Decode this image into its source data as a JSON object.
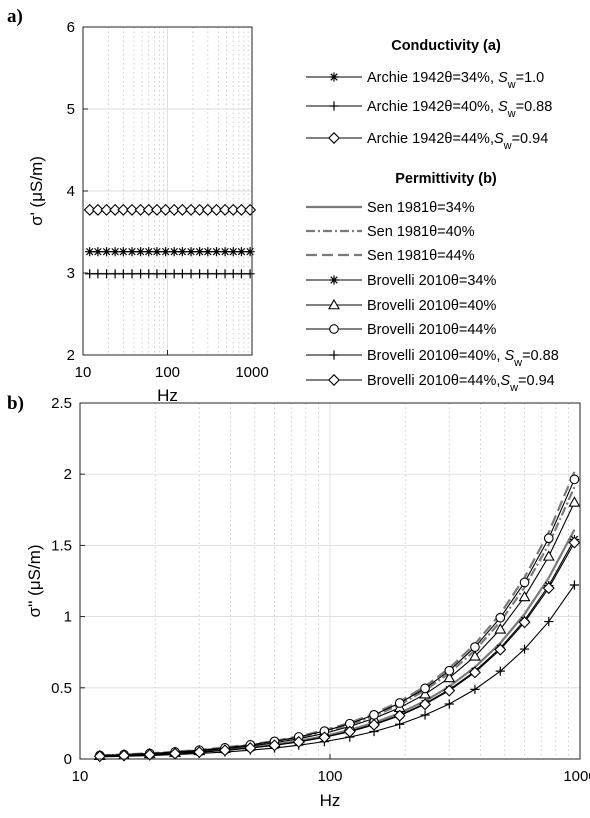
{
  "chart_data": [
    {
      "panel": "a)",
      "type": "line",
      "xscale": "log",
      "xlabel": "Hz",
      "ylabel": "σ' (μS/m)",
      "xlim": [
        10,
        1000
      ],
      "ylim": [
        2,
        6
      ],
      "xticks": [
        "10",
        "100",
        "1000"
      ],
      "yticks": [
        "2",
        "3",
        "4",
        "5",
        "6"
      ],
      "grid": true,
      "x": [
        12,
        15,
        19,
        24,
        30,
        38,
        48,
        60,
        75,
        95,
        120,
        150,
        190,
        240,
        300,
        380,
        480,
        600,
        750,
        950
      ],
      "series": [
        {
          "name": "Archie 1942θ=34%, Sw=1.0",
          "marker": "asterisk",
          "color": "#000000",
          "values": [
            3.26,
            3.26,
            3.26,
            3.26,
            3.26,
            3.26,
            3.26,
            3.26,
            3.26,
            3.26,
            3.26,
            3.26,
            3.26,
            3.26,
            3.26,
            3.26,
            3.26,
            3.26,
            3.26,
            3.26
          ]
        },
        {
          "name": "Archie 1942θ=40%, Sw=0.88",
          "marker": "plus",
          "color": "#000000",
          "values": [
            2.99,
            2.99,
            2.99,
            2.99,
            2.99,
            2.99,
            2.99,
            2.99,
            2.99,
            2.99,
            2.99,
            2.99,
            2.99,
            2.99,
            2.99,
            2.99,
            2.99,
            2.99,
            2.99,
            2.99
          ]
        },
        {
          "name": "Archie 1942θ=44%,Sw=0.94",
          "marker": "diamond",
          "color": "#000000",
          "values": [
            3.77,
            3.77,
            3.77,
            3.77,
            3.77,
            3.77,
            3.77,
            3.77,
            3.77,
            3.77,
            3.77,
            3.77,
            3.77,
            3.77,
            3.77,
            3.77,
            3.77,
            3.77,
            3.77,
            3.77
          ]
        }
      ]
    },
    {
      "panel": "b)",
      "type": "line",
      "xscale": "log",
      "xlabel": "Hz",
      "ylabel": "σ'' (μS/m)",
      "xlim": [
        10,
        1000
      ],
      "ylim": [
        0,
        2.5
      ],
      "xticks": [
        "10",
        "100",
        "1000"
      ],
      "yticks": [
        "0",
        "0.5",
        "1",
        "1.5",
        "2",
        "2.5"
      ],
      "grid": true,
      "x": [
        12,
        15,
        19,
        24,
        30,
        38,
        48,
        60,
        75,
        95,
        120,
        150,
        190,
        240,
        300,
        380,
        480,
        600,
        750,
        950
      ],
      "series": [
        {
          "name": "Sen 1981θ=34%",
          "line": "solid",
          "color": "#7a7a7a",
          "values": [
            0.02,
            0.025,
            0.032,
            0.04,
            0.051,
            0.064,
            0.081,
            0.101,
            0.127,
            0.161,
            0.204,
            0.254,
            0.322,
            0.407,
            0.509,
            0.645,
            0.814,
            1.018,
            1.272,
            1.611
          ]
        },
        {
          "name": "Sen 1981θ=40%",
          "line": "dashdot",
          "color": "#7a7a7a",
          "values": [
            0.024,
            0.03,
            0.038,
            0.048,
            0.06,
            0.076,
            0.096,
            0.12,
            0.151,
            0.191,
            0.241,
            0.301,
            0.382,
            0.482,
            0.603,
            0.763,
            0.964,
            1.205,
            1.507,
            1.909
          ]
        },
        {
          "name": "Sen 1981θ=44%",
          "line": "dashed",
          "color": "#7a7a7a",
          "values": [
            0.025,
            0.032,
            0.04,
            0.051,
            0.064,
            0.081,
            0.102,
            0.127,
            0.159,
            0.202,
            0.255,
            0.318,
            0.403,
            0.51,
            0.637,
            0.807,
            1.019,
            1.274,
            1.592,
            2.017
          ]
        },
        {
          "name": "Brovelli 2010θ=34%",
          "marker": "asterisk",
          "color": "#000000",
          "values": [
            0.019,
            0.024,
            0.031,
            0.039,
            0.049,
            0.062,
            0.078,
            0.097,
            0.122,
            0.154,
            0.195,
            0.243,
            0.308,
            0.39,
            0.487,
            0.617,
            0.779,
            0.974,
            1.218,
            1.542
          ]
        },
        {
          "name": "Brovelli 2010θ=40%",
          "marker": "triangle",
          "color": "#000000",
          "values": [
            0.023,
            0.028,
            0.036,
            0.045,
            0.057,
            0.072,
            0.091,
            0.114,
            0.142,
            0.18,
            0.228,
            0.285,
            0.36,
            0.455,
            0.569,
            0.721,
            0.911,
            1.138,
            1.423,
            1.802
          ]
        },
        {
          "name": "Brovelli 2010θ=44%",
          "marker": "circle",
          "color": "#000000",
          "values": [
            0.025,
            0.031,
            0.039,
            0.049,
            0.062,
            0.078,
            0.099,
            0.124,
            0.155,
            0.196,
            0.248,
            0.31,
            0.393,
            0.496,
            0.62,
            0.786,
            0.992,
            1.24,
            1.55,
            1.964
          ]
        },
        {
          "name": "Brovelli 2010θ=40%, Sw=0.88",
          "marker": "plus",
          "color": "#000000",
          "values": [
            0.015,
            0.019,
            0.024,
            0.031,
            0.039,
            0.049,
            0.062,
            0.077,
            0.097,
            0.122,
            0.154,
            0.193,
            0.244,
            0.309,
            0.386,
            0.489,
            0.617,
            0.772,
            0.965,
            1.222
          ]
        },
        {
          "name": "Brovelli 2010θ=44%,Sw=0.94",
          "marker": "diamond",
          "color": "#000000",
          "values": [
            0.019,
            0.024,
            0.03,
            0.038,
            0.048,
            0.061,
            0.077,
            0.096,
            0.12,
            0.152,
            0.192,
            0.24,
            0.304,
            0.384,
            0.48,
            0.608,
            0.768,
            0.96,
            1.2,
            1.52
          ]
        }
      ]
    }
  ],
  "legend": {
    "header_conductivity": "Conductivity (a)",
    "header_permittivity": "Permittivity (b)",
    "entries": [
      {
        "parts": [
          "Archie 1942θ=34%, ",
          "S",
          "w",
          "=1.0"
        ],
        "line": "solid",
        "color": "#000000",
        "marker": "asterisk"
      },
      {
        "parts": [
          "Archie 1942θ=40%, ",
          "S",
          "w",
          "=0.88"
        ],
        "line": "solid",
        "color": "#000000",
        "marker": "plus"
      },
      {
        "parts": [
          "Archie 1942θ=44%,",
          "S",
          "w",
          "=0.94"
        ],
        "line": "solid",
        "color": "#000000",
        "marker": "diamond"
      },
      {
        "parts": [
          "Sen 1981θ=34%"
        ],
        "line": "solid",
        "color": "#7a7a7a",
        "marker": "none"
      },
      {
        "parts": [
          "Sen 1981θ=40%"
        ],
        "line": "dashdot",
        "color": "#7a7a7a",
        "marker": "none"
      },
      {
        "parts": [
          "Sen 1981θ=44%"
        ],
        "line": "dashed",
        "color": "#7a7a7a",
        "marker": "none"
      },
      {
        "parts": [
          "Brovelli 2010θ=34%"
        ],
        "line": "solid",
        "color": "#000000",
        "marker": "asterisk"
      },
      {
        "parts": [
          "Brovelli 2010θ=40%"
        ],
        "line": "solid",
        "color": "#000000",
        "marker": "triangle"
      },
      {
        "parts": [
          "Brovelli 2010θ=44%"
        ],
        "line": "solid",
        "color": "#000000",
        "marker": "circle"
      },
      {
        "parts": [
          "Brovelli 2010θ=40%, ",
          "S",
          "w",
          "=0.88"
        ],
        "line": "solid",
        "color": "#000000",
        "marker": "plus"
      },
      {
        "parts": [
          "Brovelli 2010θ=44%,",
          "S",
          "w",
          "=0.94"
        ],
        "line": "solid",
        "color": "#000000",
        "marker": "diamond"
      }
    ]
  }
}
